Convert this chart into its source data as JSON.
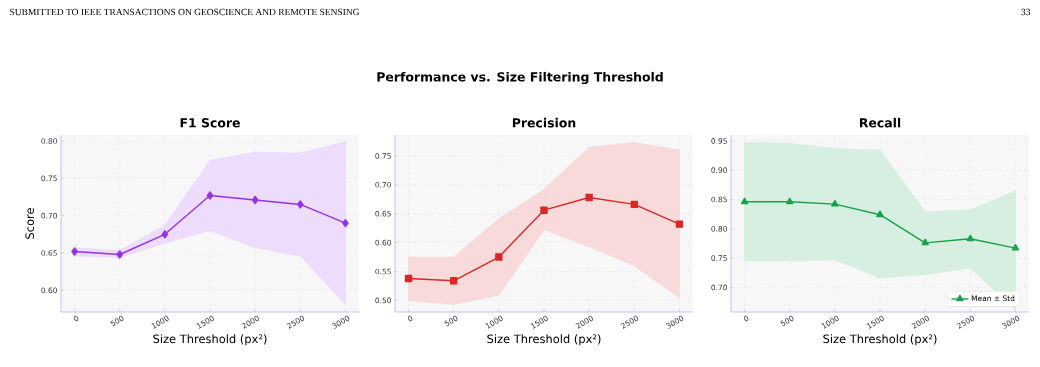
{
  "chart_data": [
    {
      "type": "line",
      "title": "F1 Score",
      "xlabel": "Size Threshold (px²)",
      "ylabel": "Score",
      "annotations": [
        "SUBMITTED TO IEEE TRANSACTIONS ON GEOSCIENCE AND REMOTE SENSING",
        "33",
        "Performance vs. Size Filtering Threshold"
      ],
      "x": [
        0,
        500,
        1000,
        1500,
        2000,
        2500,
        3000
      ],
      "series": [
        {
          "color": "#9333ea",
          "values": [
            0.652,
            0.648,
            0.675,
            0.727,
            0.721,
            0.715,
            0.69
          ],
          "upper": [
            0.657,
            0.653,
            0.687,
            0.774,
            0.785,
            0.784,
            0.799
          ],
          "lower": [
            0.646,
            0.644,
            0.663,
            0.68,
            0.657,
            0.646,
            0.581
          ]
        }
      ],
      "xlim": [
        -150,
        3150
      ],
      "ylim": [
        0.571,
        0.808
      ],
      "xticks": [
        0,
        500,
        1000,
        1500,
        2000,
        2500,
        3000
      ],
      "yticks": [
        {
          "value": 0.6,
          "label": "0.60"
        },
        {
          "value": 0.65,
          "label": "0.65"
        },
        {
          "value": 0.7,
          "label": "0.70"
        },
        {
          "value": 0.75,
          "label": "0.75"
        },
        {
          "value": 0.8,
          "label": "0.80"
        }
      ],
      "grid": true,
      "marker": "diamond",
      "line_style": "solid"
    },
    {
      "type": "line",
      "title": "Precision",
      "xlabel": "Size Threshold (px²)",
      "x": [
        0,
        500,
        1000,
        1500,
        2000,
        2500,
        3000
      ],
      "series": [
        {
          "color": "#dc2626",
          "values": [
            0.538,
            0.534,
            0.575,
            0.656,
            0.678,
            0.666,
            0.632
          ],
          "upper": [
            0.575,
            0.575,
            0.641,
            0.692,
            0.765,
            0.773,
            0.76
          ],
          "lower": [
            0.5,
            0.493,
            0.509,
            0.622,
            0.593,
            0.56,
            0.504
          ]
        }
      ],
      "xlim": [
        -150,
        3150
      ],
      "ylim": [
        0.48,
        0.786
      ],
      "xticks": [
        0,
        500,
        1000,
        1500,
        2000,
        2500,
        3000
      ],
      "yticks": [
        {
          "value": 0.5,
          "label": "0.50"
        },
        {
          "value": 0.55,
          "label": "0.55"
        },
        {
          "value": 0.6,
          "label": "0.60"
        },
        {
          "value": 0.65,
          "label": "0.65"
        },
        {
          "value": 0.7,
          "label": "0.70"
        },
        {
          "value": 0.75,
          "label": "0.75"
        }
      ],
      "grid": true,
      "marker": "square",
      "line_style": "solid"
    },
    {
      "type": "line",
      "title": "Recall",
      "xlabel": "Size Threshold (px²)",
      "x": [
        0,
        500,
        1000,
        1500,
        2000,
        2500,
        3000
      ],
      "series": [
        {
          "name": "Mean ± Std",
          "color": "#16a34a",
          "values": [
            0.846,
            0.846,
            0.842,
            0.824,
            0.776,
            0.783,
            0.767
          ],
          "upper": [
            0.947,
            0.946,
            0.937,
            0.934,
            0.829,
            0.832,
            0.865
          ],
          "lower": [
            0.745,
            0.745,
            0.747,
            0.716,
            0.722,
            0.733,
            0.661
          ]
        }
      ],
      "xlim": [
        -150,
        3150
      ],
      "ylim": [
        0.658,
        0.96
      ],
      "xticks": [
        0,
        500,
        1000,
        1500,
        2000,
        2500,
        3000
      ],
      "yticks": [
        {
          "value": 0.7,
          "label": "0.70"
        },
        {
          "value": 0.75,
          "label": "0.75"
        },
        {
          "value": 0.8,
          "label": "0.80"
        },
        {
          "value": 0.85,
          "label": "0.85"
        },
        {
          "value": 0.9,
          "label": "0.90"
        },
        {
          "value": 0.95,
          "label": "0.95"
        }
      ],
      "grid": true,
      "legend": "bottom right",
      "marker": "triangle",
      "line_style": "solid"
    }
  ]
}
